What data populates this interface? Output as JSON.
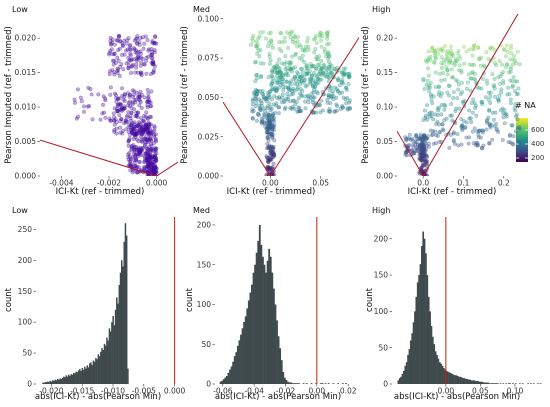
{
  "figure": {
    "top_row_xlabel": "ICI-Kt (ref - trimmed)",
    "top_row_ylabel": "Pearson Imputed (ref - trimmed)",
    "bottom_row_xlabel": "abs(ICI-Kt) - abs(Pearson Min)",
    "bottom_row_ylabel": "count",
    "colors": {
      "scatter_low": "#440b9e",
      "reference_line": "#b2182b",
      "histogram_fill": "#3f4a4c",
      "vline": "#cc2200"
    }
  },
  "legend": {
    "title": "# NA",
    "ticks": [
      "600",
      "400",
      "200"
    ],
    "colormap": "viridis",
    "range": [
      100,
      700
    ]
  },
  "chart_data": [
    {
      "type": "scatter",
      "title": "Low",
      "xlabel": "ICI-Kt (ref - trimmed)",
      "ylabel": "Pearson Imputed (ref - trimmed)",
      "xlim": [
        -0.0049,
        0.0009
      ],
      "ylim": [
        0,
        0.0235
      ],
      "xticks": [
        "-0.004",
        "-0.002",
        "0.000"
      ],
      "xtick_values": [
        -0.004,
        -0.002,
        0.0
      ],
      "yticks": [
        "0.000",
        "0.005",
        "0.010",
        "0.015",
        "0.020"
      ],
      "ytick_values": [
        0,
        0.005,
        0.01,
        0.015,
        0.02
      ],
      "color_values": [
        100,
        240
      ],
      "clusters": [
        {
          "x_range": [
            -0.0012,
            0.0
          ],
          "y_range": [
            0.0005,
            0.0075
          ],
          "n": 260
        },
        {
          "x_range": [
            -0.0018,
            -0.0002
          ],
          "y_range": [
            0.006,
            0.0125
          ],
          "n": 160
        },
        {
          "x_range": [
            -0.002,
            0.0
          ],
          "y_range": [
            0.0145,
            0.0205
          ],
          "n": 150
        },
        {
          "x_range": [
            -0.0035,
            -0.001
          ],
          "y_range": [
            0.008,
            0.013
          ],
          "n": 40
        },
        {
          "x_range": [
            -0.0004,
            0.0
          ],
          "y_range": [
            0.0,
            0.003
          ],
          "n": 80
        }
      ],
      "reference_lines": [
        {
          "x": [
            -0.0049,
            0.0
          ],
          "y": [
            0.0052,
            0.0
          ]
        },
        {
          "x": [
            0.0,
            0.0009
          ],
          "y": [
            0.0,
            0.002
          ]
        }
      ],
      "legend": false
    },
    {
      "type": "scatter",
      "title": "Med",
      "xlabel": "ICI-Kt (ref - trimmed)",
      "ylabel": "Pearson Imputed (ref - trimmed)",
      "xlim": [
        -0.047,
        0.088
      ],
      "ylim": [
        0,
        0.103
      ],
      "xticks": [
        "0.00",
        "0.05"
      ],
      "xtick_values": [
        0.0,
        0.05
      ],
      "yticks": [
        "0.000",
        "0.025",
        "0.050",
        "0.075",
        "0.100"
      ],
      "ytick_values": [
        0,
        0.025,
        0.05,
        0.075,
        0.1
      ],
      "color_values": [
        150,
        600
      ],
      "clusters": [
        {
          "x_range": [
            -0.004,
            0.004
          ],
          "y_range": [
            0.0,
            0.04
          ],
          "n": 140
        },
        {
          "x_range": [
            0.0,
            0.08
          ],
          "y_range": [
            0.04,
            0.07
          ],
          "n": 300
        },
        {
          "x_range": [
            -0.02,
            0.06
          ],
          "y_range": [
            0.06,
            0.092
          ],
          "n": 180
        },
        {
          "x_range": [
            -0.018,
            0.0
          ],
          "y_range": [
            0.03,
            0.055
          ],
          "n": 80
        }
      ],
      "reference_lines": [
        {
          "x": [
            -0.047,
            0.0
          ],
          "y": [
            0.047,
            0.0
          ]
        },
        {
          "x": [
            0.0,
            0.088
          ],
          "y": [
            0.0,
            0.088
          ]
        }
      ],
      "legend": false
    },
    {
      "type": "scatter",
      "title": "High",
      "xlabel": "ICI-Kt (ref - trimmed)",
      "ylabel": "Pearson Imputed (ref - trimmed)",
      "xlim": [
        -0.065,
        0.27
      ],
      "ylim": [
        0,
        0.235
      ],
      "xticks": [
        "0.0",
        "0.1",
        "0.2"
      ],
      "xtick_values": [
        0.0,
        0.1,
        0.2
      ],
      "yticks": [
        "0.00",
        "0.05",
        "0.10",
        "0.15",
        "0.20"
      ],
      "ytick_values": [
        0,
        0.05,
        0.1,
        0.15,
        0.2
      ],
      "color_values": [
        150,
        700
      ],
      "clusters": [
        {
          "x_range": [
            -0.01,
            0.01
          ],
          "y_range": [
            0.0,
            0.06
          ],
          "n": 120
        },
        {
          "x_range": [
            0.0,
            0.24
          ],
          "y_range": [
            0.04,
            0.19
          ],
          "n": 400
        },
        {
          "x_range": [
            -0.045,
            0.0
          ],
          "y_range": [
            0.03,
            0.06
          ],
          "n": 60
        }
      ],
      "reference_lines": [
        {
          "x": [
            -0.065,
            0.0
          ],
          "y": [
            0.065,
            0.0
          ]
        },
        {
          "x": [
            0.0,
            0.24
          ],
          "y": [
            0.0,
            0.24
          ]
        }
      ],
      "legend": true
    },
    {
      "type": "bar",
      "title": "Low",
      "xlabel": "abs(ICI-Kt) - abs(Pearson Min)",
      "ylabel": "count",
      "xlim": [
        -0.0225,
        0.0012
      ],
      "ylim": [
        0,
        270
      ],
      "xticks": [
        "-0.020",
        "-0.015",
        "-0.010",
        "-0.005",
        "0.000"
      ],
      "xtick_values": [
        -0.02,
        -0.015,
        -0.01,
        -0.005,
        0.0
      ],
      "yticks": [
        "0",
        "50",
        "100",
        "150",
        "200",
        "250"
      ],
      "ytick_values": [
        0,
        50,
        100,
        150,
        200,
        250
      ],
      "bin_start": -0.0215,
      "bin_width": 0.0002,
      "values": [
        2,
        2,
        3,
        3,
        4,
        3,
        5,
        4,
        6,
        5,
        7,
        6,
        8,
        7,
        9,
        8,
        10,
        12,
        11,
        14,
        12,
        15,
        13,
        16,
        15,
        18,
        17,
        20,
        19,
        22,
        24,
        21,
        26,
        23,
        28,
        25,
        30,
        27,
        33,
        35,
        31,
        38,
        36,
        42,
        40,
        48,
        45,
        52,
        58,
        55,
        65,
        62,
        75,
        70,
        90,
        85,
        100,
        110,
        95,
        120,
        140,
        130,
        160,
        180,
        200,
        190,
        230,
        260,
        240,
        25
      ],
      "vline": 0.0
    },
    {
      "type": "bar",
      "title": "Med",
      "xlabel": "abs(ICI-Kt) - abs(Pearson Min)",
      "ylabel": "count",
      "xlim": [
        -0.065,
        0.025
      ],
      "ylim": [
        0,
        210
      ],
      "xticks": [
        "-0.06",
        "-0.04",
        "-0.02",
        "0.00",
        "0.02"
      ],
      "xtick_values": [
        -0.06,
        -0.04,
        -0.02,
        0.0,
        0.02
      ],
      "yticks": [
        "0",
        "50",
        "100",
        "150",
        "200"
      ],
      "ytick_values": [
        0,
        50,
        100,
        150,
        200
      ],
      "bin_start": -0.062,
      "bin_width": 0.001,
      "values": [
        3,
        4,
        6,
        8,
        10,
        14,
        18,
        22,
        28,
        35,
        40,
        48,
        55,
        62,
        70,
        78,
        85,
        95,
        105,
        115,
        125,
        140,
        150,
        165,
        180,
        200,
        175,
        160,
        150,
        140,
        155,
        170,
        160,
        140,
        120,
        100,
        80,
        60,
        45,
        30,
        15,
        8,
        5,
        3,
        2,
        2,
        1,
        1,
        1,
        1,
        1,
        0,
        0,
        1,
        0,
        1,
        0,
        0,
        1,
        0,
        0,
        1,
        0,
        0,
        1,
        1,
        0,
        1,
        0,
        1,
        0,
        0,
        1,
        0,
        0,
        1,
        0,
        0,
        1,
        0,
        1,
        0
      ],
      "vline": 0.0
    },
    {
      "type": "bar",
      "title": "High",
      "xlabel": "abs(ICI-Kt) - abs(Pearson Min)",
      "ylabel": "count",
      "xlim": [
        -0.078,
        0.145
      ],
      "ylim": [
        0,
        230
      ],
      "xticks": [
        "0.00",
        "0.05",
        "0.10"
      ],
      "xtick_values": [
        0.0,
        0.05,
        0.1
      ],
      "yticks": [
        "0",
        "50",
        "100",
        "150",
        "200"
      ],
      "ytick_values": [
        0,
        50,
        100,
        150,
        200
      ],
      "bin_start": -0.07,
      "bin_width": 0.002,
      "values": [
        5,
        8,
        10,
        14,
        18,
        25,
        30,
        40,
        48,
        60,
        70,
        85,
        100,
        120,
        140,
        150,
        165,
        190,
        210,
        200,
        180,
        150,
        120,
        100,
        80,
        65,
        55,
        45,
        40,
        35,
        30,
        28,
        25,
        22,
        20,
        18,
        17,
        16,
        15,
        14,
        13,
        12,
        12,
        11,
        10,
        10,
        9,
        8,
        8,
        7,
        7,
        6,
        6,
        5,
        5,
        5,
        4,
        4,
        4,
        3,
        3,
        3,
        2,
        2,
        2,
        2,
        1,
        1,
        1,
        1,
        1,
        1,
        1,
        0,
        1,
        0,
        1,
        0,
        1,
        0,
        1,
        1,
        0,
        1,
        0,
        1,
        0,
        0,
        1,
        0,
        1,
        0,
        0,
        0,
        1,
        0,
        1,
        0,
        1,
        0,
        0,
        1,
        0,
        1,
        0
      ],
      "vline": 0.0
    }
  ]
}
